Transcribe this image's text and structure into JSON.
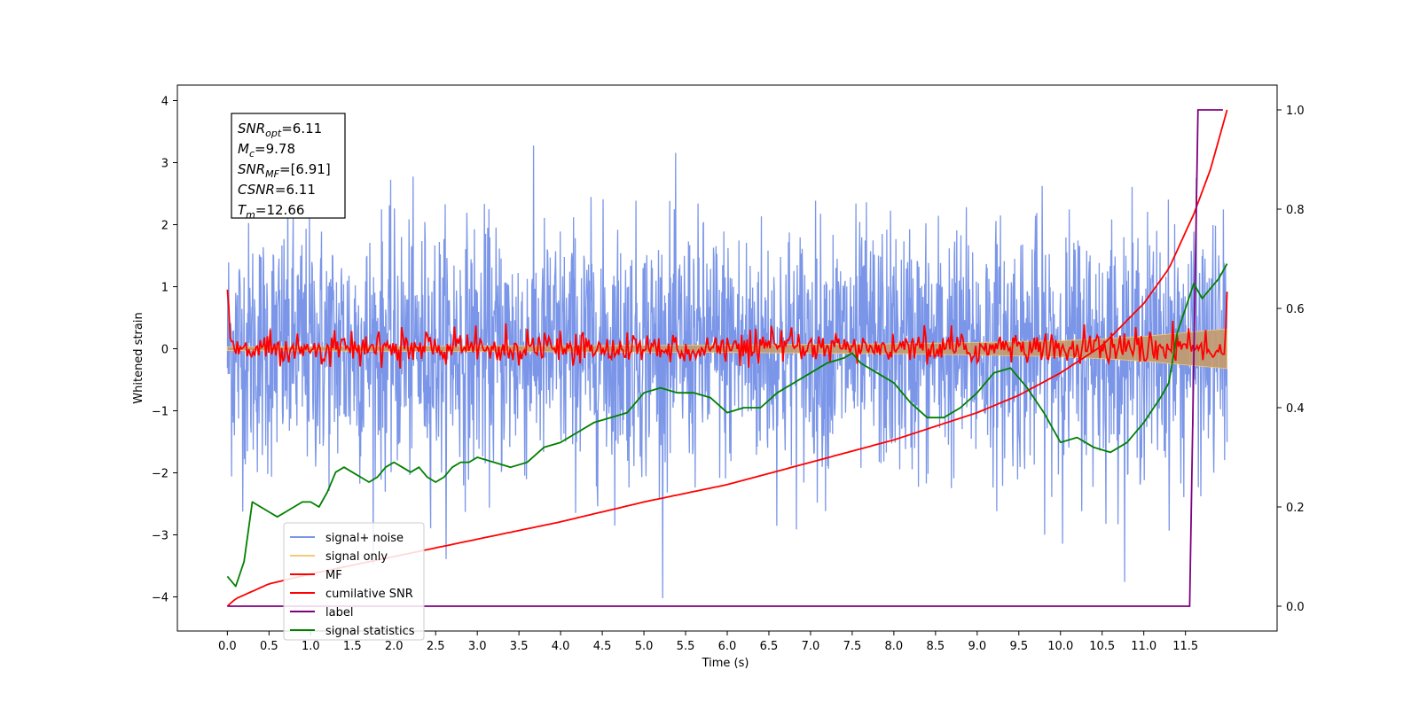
{
  "chart_data": {
    "type": "line",
    "xlabel": "Time (s)",
    "ylabel": "Whitened strain",
    "xlim": [
      -0.6,
      12.6
    ],
    "ylim": [
      -4.55,
      4.25
    ],
    "y2lim": [
      -0.05,
      1.05
    ],
    "x_ticks": [
      "0.0",
      "0.5",
      "1.0",
      "1.5",
      "2.0",
      "2.5",
      "3.0",
      "3.5",
      "4.0",
      "4.5",
      "5.0",
      "5.5",
      "6.0",
      "6.5",
      "7.0",
      "7.5",
      "8.0",
      "8.5",
      "9.0",
      "9.5",
      "10.0",
      "10.5",
      "11.0",
      "11.5"
    ],
    "y_ticks": [
      "−4",
      "−3",
      "−2",
      "−1",
      "0",
      "1",
      "2",
      "3",
      "4"
    ],
    "y2_ticks": [
      "0.0",
      "0.2",
      "0.4",
      "0.6",
      "0.8",
      "1.0"
    ],
    "info_box": [
      {
        "var": "SNR",
        "sub": "opt",
        "value": "=6.11"
      },
      {
        "var": "M",
        "sub": "c",
        "value": "=9.78"
      },
      {
        "var": "SNR",
        "sub": "MF",
        "value": "=[6.91]"
      },
      {
        "var": "CSNR",
        "sub": "",
        "value": "=6.11"
      },
      {
        "var": "T",
        "sub": "m",
        "value": "=12.66"
      }
    ],
    "legend_position": "lower-left",
    "legend": [
      {
        "label": "signal+ noise",
        "color": "#7b96e8"
      },
      {
        "label": "signal only",
        "color": "#f4c97a"
      },
      {
        "label": "MF",
        "color": "#ff0000"
      },
      {
        "label": "cumilative SNR",
        "color": "#ff0000"
      },
      {
        "label": "label",
        "color": "#800080"
      },
      {
        "label": "signal statistics",
        "color": "#008000"
      }
    ],
    "series": [
      {
        "name": "signal+ noise",
        "axis": "left",
        "color": "#7b96e8",
        "kind": "noise",
        "x_range": [
          0,
          12.0
        ],
        "std": 1.0,
        "min": -4.1,
        "max": 3.85
      },
      {
        "name": "signal only",
        "axis": "left",
        "color": "#c49a6c",
        "kind": "envelope",
        "x": [
          0,
          2,
          4,
          6,
          8,
          9,
          10,
          10.5,
          11,
          11.5,
          12.0
        ],
        "amplitude": [
          0.03,
          0.04,
          0.05,
          0.06,
          0.08,
          0.1,
          0.13,
          0.16,
          0.2,
          0.26,
          0.32
        ]
      },
      {
        "name": "MF",
        "axis": "left",
        "color": "#ff0000",
        "kind": "jitter",
        "x_range": [
          0,
          12.0
        ],
        "start": 0.95,
        "end": 0.92,
        "amplitude": 0.15
      },
      {
        "name": "cumilative SNR",
        "axis": "right",
        "color": "#ff0000",
        "x": [
          0,
          0.1,
          0.5,
          1,
          2,
          3,
          4,
          5,
          6,
          7,
          8,
          9,
          9.5,
          10,
          10.5,
          11,
          11.3,
          11.6,
          11.8,
          12.0
        ],
        "y": [
          0.0,
          0.015,
          0.045,
          0.065,
          0.1,
          0.135,
          0.17,
          0.21,
          0.245,
          0.29,
          0.335,
          0.39,
          0.425,
          0.47,
          0.525,
          0.61,
          0.68,
          0.79,
          0.88,
          1.0
        ]
      },
      {
        "name": "label",
        "axis": "right",
        "color": "#800080",
        "x": [
          0,
          11.55,
          11.65,
          11.95
        ],
        "y": [
          0.0,
          0.0,
          1.0,
          1.0
        ]
      },
      {
        "name": "signal statistics",
        "axis": "right",
        "color": "#008000",
        "x": [
          0,
          0.1,
          0.2,
          0.3,
          0.4,
          0.5,
          0.6,
          0.7,
          0.8,
          0.9,
          1.0,
          1.1,
          1.2,
          1.3,
          1.4,
          1.5,
          1.6,
          1.7,
          1.8,
          1.9,
          2.0,
          2.1,
          2.2,
          2.3,
          2.4,
          2.5,
          2.6,
          2.7,
          2.8,
          2.9,
          3.0,
          3.2,
          3.4,
          3.6,
          3.8,
          4.0,
          4.2,
          4.4,
          4.6,
          4.8,
          5.0,
          5.2,
          5.4,
          5.6,
          5.8,
          6.0,
          6.2,
          6.4,
          6.6,
          6.8,
          7.0,
          7.2,
          7.4,
          7.5,
          7.6,
          7.8,
          8.0,
          8.2,
          8.4,
          8.6,
          8.8,
          9.0,
          9.2,
          9.4,
          9.5,
          9.6,
          9.8,
          10.0,
          10.2,
          10.4,
          10.6,
          10.8,
          11.0,
          11.2,
          11.3,
          11.4,
          11.5,
          11.6,
          11.7,
          11.8,
          11.9,
          12.0
        ],
        "y": [
          0.06,
          0.04,
          0.09,
          0.21,
          0.2,
          0.19,
          0.18,
          0.19,
          0.2,
          0.21,
          0.21,
          0.2,
          0.23,
          0.27,
          0.28,
          0.27,
          0.26,
          0.25,
          0.26,
          0.28,
          0.29,
          0.28,
          0.27,
          0.28,
          0.26,
          0.25,
          0.26,
          0.28,
          0.29,
          0.29,
          0.3,
          0.29,
          0.28,
          0.29,
          0.32,
          0.33,
          0.35,
          0.37,
          0.38,
          0.39,
          0.43,
          0.44,
          0.43,
          0.43,
          0.42,
          0.39,
          0.4,
          0.4,
          0.43,
          0.45,
          0.47,
          0.49,
          0.5,
          0.51,
          0.49,
          0.47,
          0.45,
          0.41,
          0.38,
          0.38,
          0.4,
          0.43,
          0.47,
          0.48,
          0.46,
          0.44,
          0.39,
          0.33,
          0.34,
          0.32,
          0.31,
          0.33,
          0.37,
          0.42,
          0.45,
          0.55,
          0.6,
          0.65,
          0.62,
          0.64,
          0.66,
          0.69
        ]
      }
    ]
  }
}
